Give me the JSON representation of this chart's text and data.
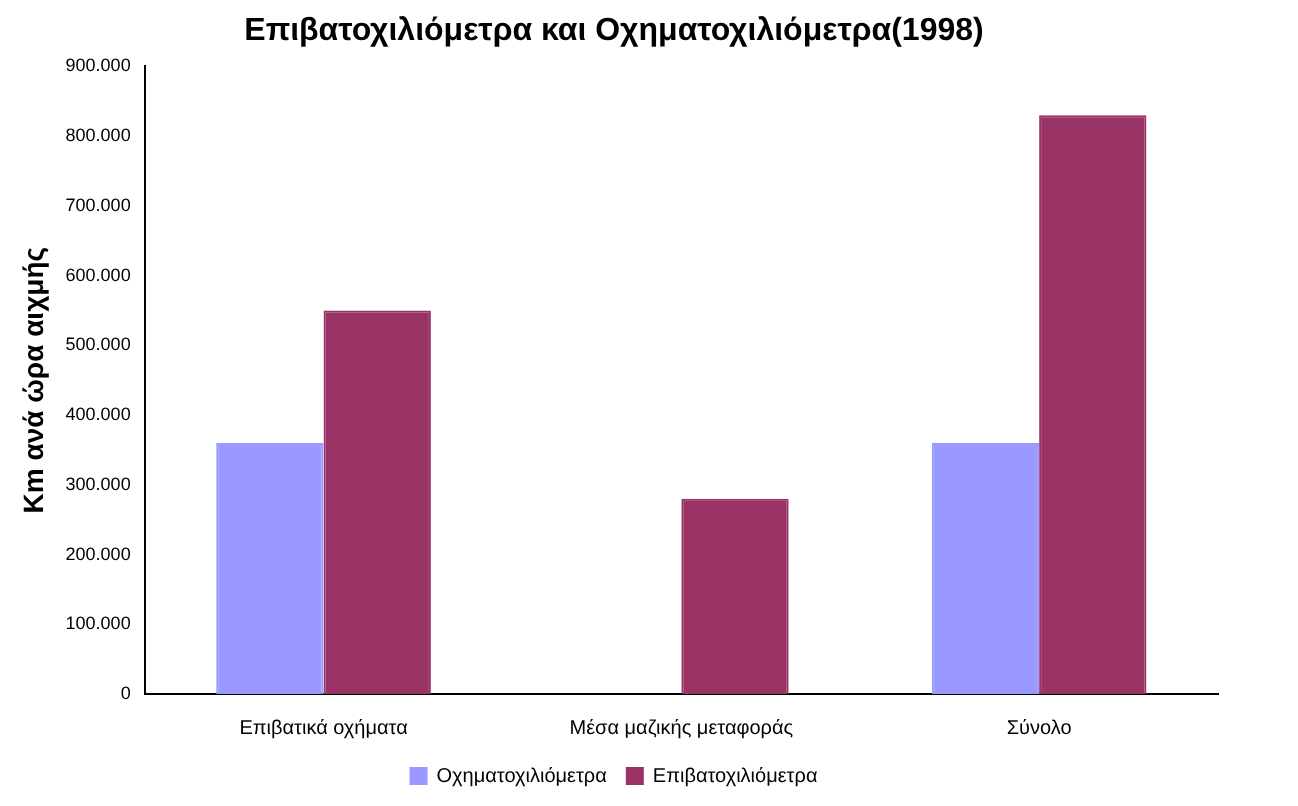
{
  "chart_data": {
    "type": "bar",
    "title": "Επιβατοχιλιόμετρα και Οχηματοχιλιόμετρα(1998)",
    "ylabel": "Km ανά ώρα αιχμής",
    "categories": [
      "Επιβατικά οχήματα",
      "Μέσα μαζικής μεταφοράς",
      "Σύνολο"
    ],
    "series": [
      {
        "name": "Οχηματοχιλιόμετρα",
        "color": "#9999ff",
        "values": [
          360000,
          0,
          360000
        ]
      },
      {
        "name": "Επιβατοχιλιόμετρα",
        "color": "#993366",
        "values": [
          550000,
          280000,
          830000
        ]
      }
    ],
    "ylim": [
      0,
      900000
    ],
    "yticks": [
      {
        "value": 0,
        "label": "0"
      },
      {
        "value": 100000,
        "label": "100.000"
      },
      {
        "value": 200000,
        "label": "200.000"
      },
      {
        "value": 300000,
        "label": "300.000"
      },
      {
        "value": 400000,
        "label": "400.000"
      },
      {
        "value": 500000,
        "label": "500.000"
      },
      {
        "value": 600000,
        "label": "600.000"
      },
      {
        "value": 700000,
        "label": "700.000"
      },
      {
        "value": 800000,
        "label": "800.000"
      },
      {
        "value": 900000,
        "label": "900.000"
      }
    ],
    "grid": false,
    "legend": "bottom"
  }
}
